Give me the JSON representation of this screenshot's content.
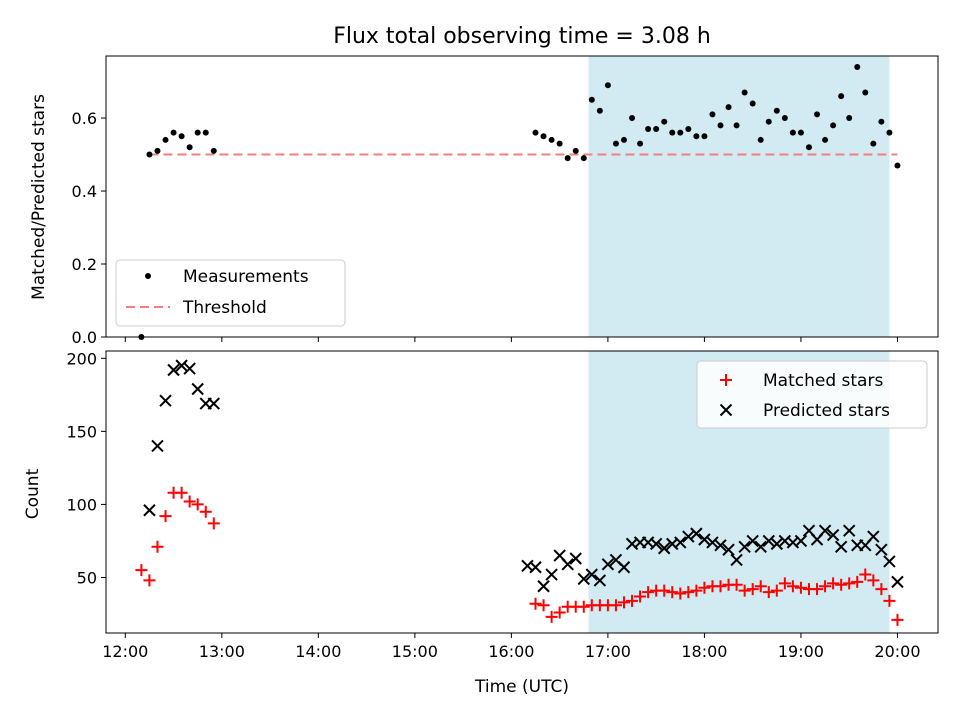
{
  "title": "Flux total observing time = 3.08 h",
  "colors": {
    "shade": "#add8e6",
    "threshold": "#f08080",
    "matched": "#ff0000",
    "predicted": "#000000",
    "measurement": "#000000"
  },
  "chart_data": [
    {
      "type": "scatter",
      "ylabel": "Matched/Predicted stars",
      "xlim": [
        11.8,
        20.42
      ],
      "ylim": [
        0.0,
        0.77
      ],
      "yticks": [
        0.0,
        0.2,
        0.4,
        0.6
      ],
      "yticklabels": [
        "0.0",
        "0.2",
        "0.4",
        "0.6"
      ],
      "shaded_interval": [
        "16:48",
        "19:55"
      ],
      "legend": {
        "position": "lower-left",
        "entries": [
          "Measurements",
          "Threshold"
        ]
      },
      "threshold": {
        "name": "Threshold",
        "y": 0.5,
        "x": [
          "12:15",
          "20:00"
        ]
      },
      "series": [
        {
          "name": "Measurements",
          "x": [
            "12:10",
            "12:15",
            "12:20",
            "12:25",
            "12:30",
            "12:35",
            "12:40",
            "12:45",
            "12:50",
            "12:55",
            "16:15",
            "16:20",
            "16:25",
            "16:30",
            "16:35",
            "16:40",
            "16:45",
            "16:50",
            "16:55",
            "17:00",
            "17:05",
            "17:10",
            "17:15",
            "17:20",
            "17:25",
            "17:30",
            "17:35",
            "17:40",
            "17:45",
            "17:50",
            "17:55",
            "18:00",
            "18:05",
            "18:10",
            "18:15",
            "18:20",
            "18:25",
            "18:30",
            "18:35",
            "18:40",
            "18:45",
            "18:50",
            "18:55",
            "19:00",
            "19:05",
            "19:10",
            "19:15",
            "19:20",
            "19:25",
            "19:30",
            "19:35",
            "19:40",
            "19:45",
            "19:50",
            "19:55",
            "20:00"
          ],
          "y": [
            0.0,
            0.5,
            0.51,
            0.54,
            0.56,
            0.55,
            0.52,
            0.56,
            0.56,
            0.51,
            0.56,
            0.55,
            0.54,
            0.53,
            0.49,
            0.51,
            0.49,
            0.65,
            0.62,
            0.69,
            0.53,
            0.54,
            0.6,
            0.53,
            0.57,
            0.57,
            0.59,
            0.56,
            0.56,
            0.57,
            0.55,
            0.55,
            0.61,
            0.58,
            0.63,
            0.58,
            0.67,
            0.64,
            0.54,
            0.59,
            0.62,
            0.6,
            0.56,
            0.56,
            0.52,
            0.61,
            0.54,
            0.58,
            0.66,
            0.6,
            0.74,
            0.67,
            0.53,
            0.59,
            0.56,
            0.47
          ]
        }
      ]
    },
    {
      "type": "scatter",
      "xlabel": "Time (UTC)",
      "ylabel": "Count",
      "xlim": [
        11.8,
        20.42
      ],
      "ylim": [
        12,
        205
      ],
      "xticks": [
        "12:00",
        "13:00",
        "14:00",
        "15:00",
        "16:00",
        "17:00",
        "18:00",
        "19:00",
        "20:00"
      ],
      "yticks": [
        50,
        100,
        150,
        200
      ],
      "yticklabels": [
        "50",
        "100",
        "150",
        "200"
      ],
      "shaded_interval": [
        "16:48",
        "19:55"
      ],
      "legend": {
        "position": "top-right",
        "entries": [
          "Matched stars",
          "Predicted stars"
        ]
      },
      "series": [
        {
          "name": "Matched stars",
          "marker": "plus",
          "x": [
            "12:10",
            "12:15",
            "12:20",
            "12:25",
            "12:30",
            "12:35",
            "12:40",
            "12:45",
            "12:50",
            "12:55",
            "16:15",
            "16:20",
            "16:25",
            "16:30",
            "16:35",
            "16:40",
            "16:45",
            "16:50",
            "16:55",
            "17:00",
            "17:05",
            "17:10",
            "17:15",
            "17:20",
            "17:25",
            "17:30",
            "17:35",
            "17:40",
            "17:45",
            "17:50",
            "17:55",
            "18:00",
            "18:05",
            "18:10",
            "18:15",
            "18:20",
            "18:25",
            "18:30",
            "18:35",
            "18:40",
            "18:45",
            "18:50",
            "18:55",
            "19:00",
            "19:05",
            "19:10",
            "19:15",
            "19:20",
            "19:25",
            "19:30",
            "19:35",
            "19:40",
            "19:45",
            "19:50",
            "19:55",
            "20:00"
          ],
          "y": [
            55,
            48,
            71,
            92,
            108,
            108,
            102,
            100,
            95,
            87,
            32,
            31,
            23,
            26,
            30,
            30,
            30,
            31,
            31,
            31,
            31,
            33,
            34,
            37,
            40,
            41,
            41,
            40,
            39,
            40,
            41,
            43,
            44,
            44,
            45,
            45,
            41,
            42,
            44,
            40,
            41,
            46,
            44,
            43,
            42,
            42,
            44,
            46,
            45,
            46,
            47,
            52,
            48,
            42,
            34,
            21
          ]
        },
        {
          "name": "Predicted stars",
          "marker": "cross",
          "x": [
            "12:15",
            "12:20",
            "12:25",
            "12:30",
            "12:35",
            "12:40",
            "12:45",
            "12:50",
            "12:55",
            "16:10",
            "16:15",
            "16:20",
            "16:25",
            "16:30",
            "16:35",
            "16:40",
            "16:45",
            "16:50",
            "16:55",
            "17:00",
            "17:05",
            "17:10",
            "17:15",
            "17:20",
            "17:25",
            "17:30",
            "17:35",
            "17:40",
            "17:45",
            "17:50",
            "17:55",
            "18:00",
            "18:05",
            "18:10",
            "18:15",
            "18:20",
            "18:25",
            "18:30",
            "18:35",
            "18:40",
            "18:45",
            "18:50",
            "18:55",
            "19:00",
            "19:05",
            "19:10",
            "19:15",
            "19:20",
            "19:25",
            "19:30",
            "19:35",
            "19:40",
            "19:45",
            "19:50",
            "19:55",
            "20:00"
          ],
          "y": [
            96,
            140,
            171,
            192,
            195,
            193,
            179,
            169,
            169,
            58,
            57,
            44,
            52,
            65,
            59,
            63,
            49,
            52,
            48,
            59,
            62,
            57,
            73,
            74,
            74,
            73,
            70,
            73,
            74,
            78,
            80,
            76,
            74,
            72,
            69,
            62,
            71,
            75,
            71,
            75,
            73,
            75,
            74,
            75,
            82,
            76,
            82,
            79,
            71,
            82,
            72,
            72,
            78,
            69,
            61,
            47
          ]
        }
      ]
    }
  ]
}
